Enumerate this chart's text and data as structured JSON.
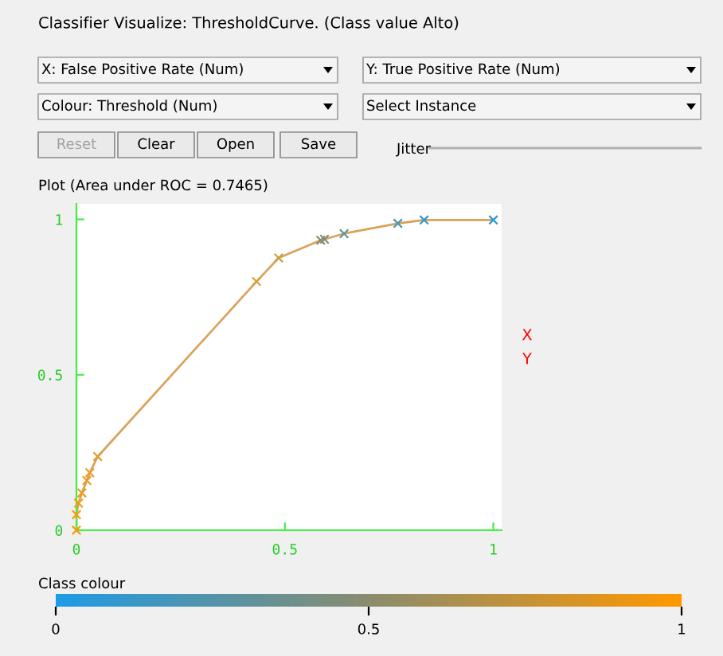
{
  "chart_data": {
    "type": "line",
    "title": "Plot (Area under ROC = 0.7465)",
    "x": [
      0,
      0,
      0.005,
      0.013,
      0.025,
      0.032,
      0.051,
      0.432,
      0.485,
      0.586,
      0.595,
      0.642,
      0.771,
      0.834,
      1
    ],
    "series": [
      {
        "color": "#d9a35a",
        "values": [
          0,
          0.05,
          0.087,
          0.12,
          0.16,
          0.185,
          0.237,
          0.8,
          0.876,
          0.933,
          0.936,
          0.954,
          0.987,
          0.998,
          0.998
        ],
        "colors": [
          "#ff9800",
          "#f89a0a",
          "#f49b12",
          "#f09c17",
          "#eb9c1e",
          "#e69d25",
          "#e29d2a",
          "#d89f36",
          "#cea042",
          "#8a8c6e",
          "#7d8f7a",
          "#5d9498",
          "#4896b0",
          "#3399cb",
          "#2899d8"
        ]
      }
    ],
    "marker": "cross",
    "line_style": "solid",
    "grid": false,
    "legend": false,
    "xlim": [
      0,
      1.02
    ],
    "ylim": [
      0,
      1.05
    ],
    "xticks": [
      0,
      0.5,
      1
    ],
    "yticks": [
      0,
      0.5,
      1
    ],
    "clabel": "Class colour",
    "clim": [
      0,
      1
    ],
    "cticks": [
      0,
      0.5,
      1
    ],
    "annotations": [
      "Classifier Visualize: ThresholdCurve. (Class value Alto)",
      "X: False Positive Rate (Num)",
      "Y: True Positive Rate (Num)",
      "Colour: Threshold (Num)",
      "Select Instance",
      "Reset",
      "Clear",
      "Open",
      "Save",
      "Jitter",
      "X",
      "Y"
    ]
  }
}
